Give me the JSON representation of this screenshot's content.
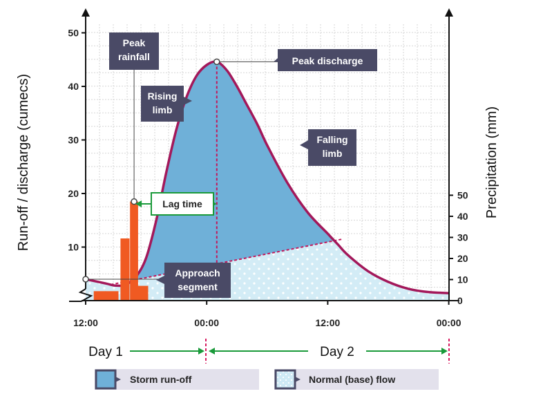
{
  "chart_data": {
    "type": "area",
    "title": "",
    "ylabel": "Run-off / discharge (cumecs)",
    "y2label": "Precipitation (mm)",
    "ylim": [
      0,
      50
    ],
    "y_ticks": [
      10,
      20,
      30,
      40,
      50
    ],
    "y2lim": [
      0,
      50
    ],
    "y2_ticks": [
      0,
      10,
      20,
      30,
      40,
      50
    ],
    "x_ticks": [
      "12:00",
      "00:00",
      "12:00",
      "00:00"
    ],
    "x_tick_hours": [
      0,
      12,
      24,
      36
    ],
    "xlim_hours": [
      0,
      36
    ],
    "grid": true,
    "series": [
      {
        "name": "Storm run-off",
        "color": "#6fb0d8",
        "hours": [
          0,
          2,
          3,
          4,
          5,
          6,
          7,
          8,
          9,
          10,
          11,
          12,
          13,
          14,
          15,
          16,
          17,
          18,
          20,
          22,
          24,
          25,
          26,
          28,
          30,
          32,
          34,
          36
        ],
        "values": [
          4,
          3.2,
          2.8,
          3,
          4.5,
          8,
          15,
          24,
          32,
          38,
          42,
          44,
          44.6,
          43,
          40,
          36.5,
          33,
          29,
          22,
          16.5,
          12.5,
          10.5,
          8.5,
          5.5,
          3.5,
          2.2,
          1.6,
          1.4
        ]
      },
      {
        "name": "Normal (base) flow",
        "color": "#cfeaf5",
        "hours": [
          0,
          2.5,
          25.5,
          36
        ],
        "values": [
          4,
          3,
          11.5,
          1.4
        ]
      }
    ],
    "precipitation": {
      "hours": [
        1.4,
        2.6,
        3.9,
        4.8,
        5.6
      ],
      "widths": [
        1.2,
        1.3,
        0.9,
        0.8,
        1.2
      ],
      "values": [
        4.5,
        4.5,
        29.5,
        47,
        7
      ],
      "color": "#f05a22"
    },
    "annotations": {
      "peak_rainfall": {
        "lines": [
          "Peak",
          "rainfall"
        ],
        "hour": 4.8,
        "value": 19.2
      },
      "peak_discharge": {
        "text": "Peak discharge",
        "hour": 13,
        "value": 44.6
      },
      "rising_limb": {
        "lines": [
          "Rising",
          "limb"
        ]
      },
      "falling_limb": {
        "lines": [
          "Falling",
          "limb"
        ]
      },
      "approach_segment": {
        "lines": [
          "Approach",
          "segment"
        ],
        "hour": 0,
        "value": 4
      },
      "lag_time": {
        "text": "Lag time",
        "from_hour": 4.8,
        "to_hour": 13
      }
    },
    "days": [
      "Day 1",
      "Day 2"
    ],
    "legend": [
      {
        "label": "Storm run-off",
        "color": "#6fb0d8"
      },
      {
        "label": "Normal (base) flow",
        "color": "#cfeaf5"
      }
    ]
  }
}
